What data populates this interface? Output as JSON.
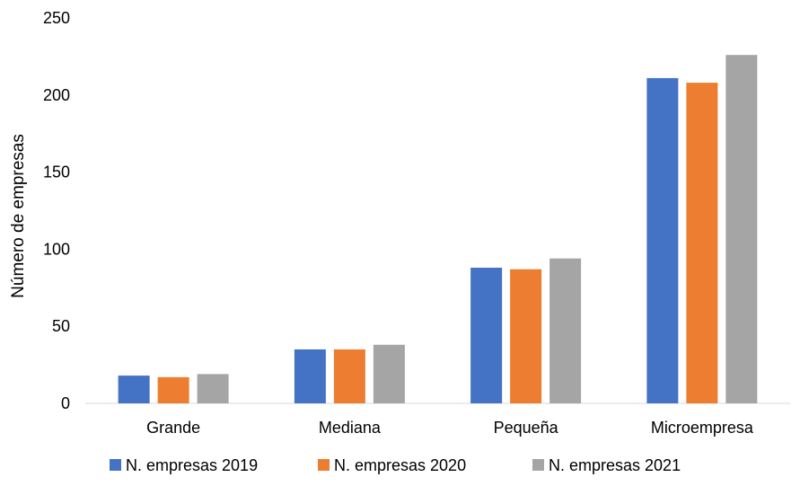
{
  "chart_data": {
    "type": "bar",
    "title": "",
    "xlabel": "",
    "ylabel": "Número de empresas",
    "ylim": [
      0,
      250
    ],
    "yticks": [
      0,
      50,
      100,
      150,
      200,
      250
    ],
    "grid": false,
    "legend_position": "bottom",
    "categories": [
      "Grande",
      "Mediana",
      "Pequeña",
      "Microempresa"
    ],
    "series": [
      {
        "name": "N. empresas 2019",
        "color": "#4472C4",
        "values": [
          18,
          35,
          88,
          211
        ]
      },
      {
        "name": "N. empresas 2020",
        "color": "#ED7D31",
        "values": [
          17,
          35,
          87,
          208
        ]
      },
      {
        "name": "N. empresas 2021",
        "color": "#A5A5A5",
        "values": [
          19,
          38,
          94,
          226
        ]
      }
    ]
  }
}
